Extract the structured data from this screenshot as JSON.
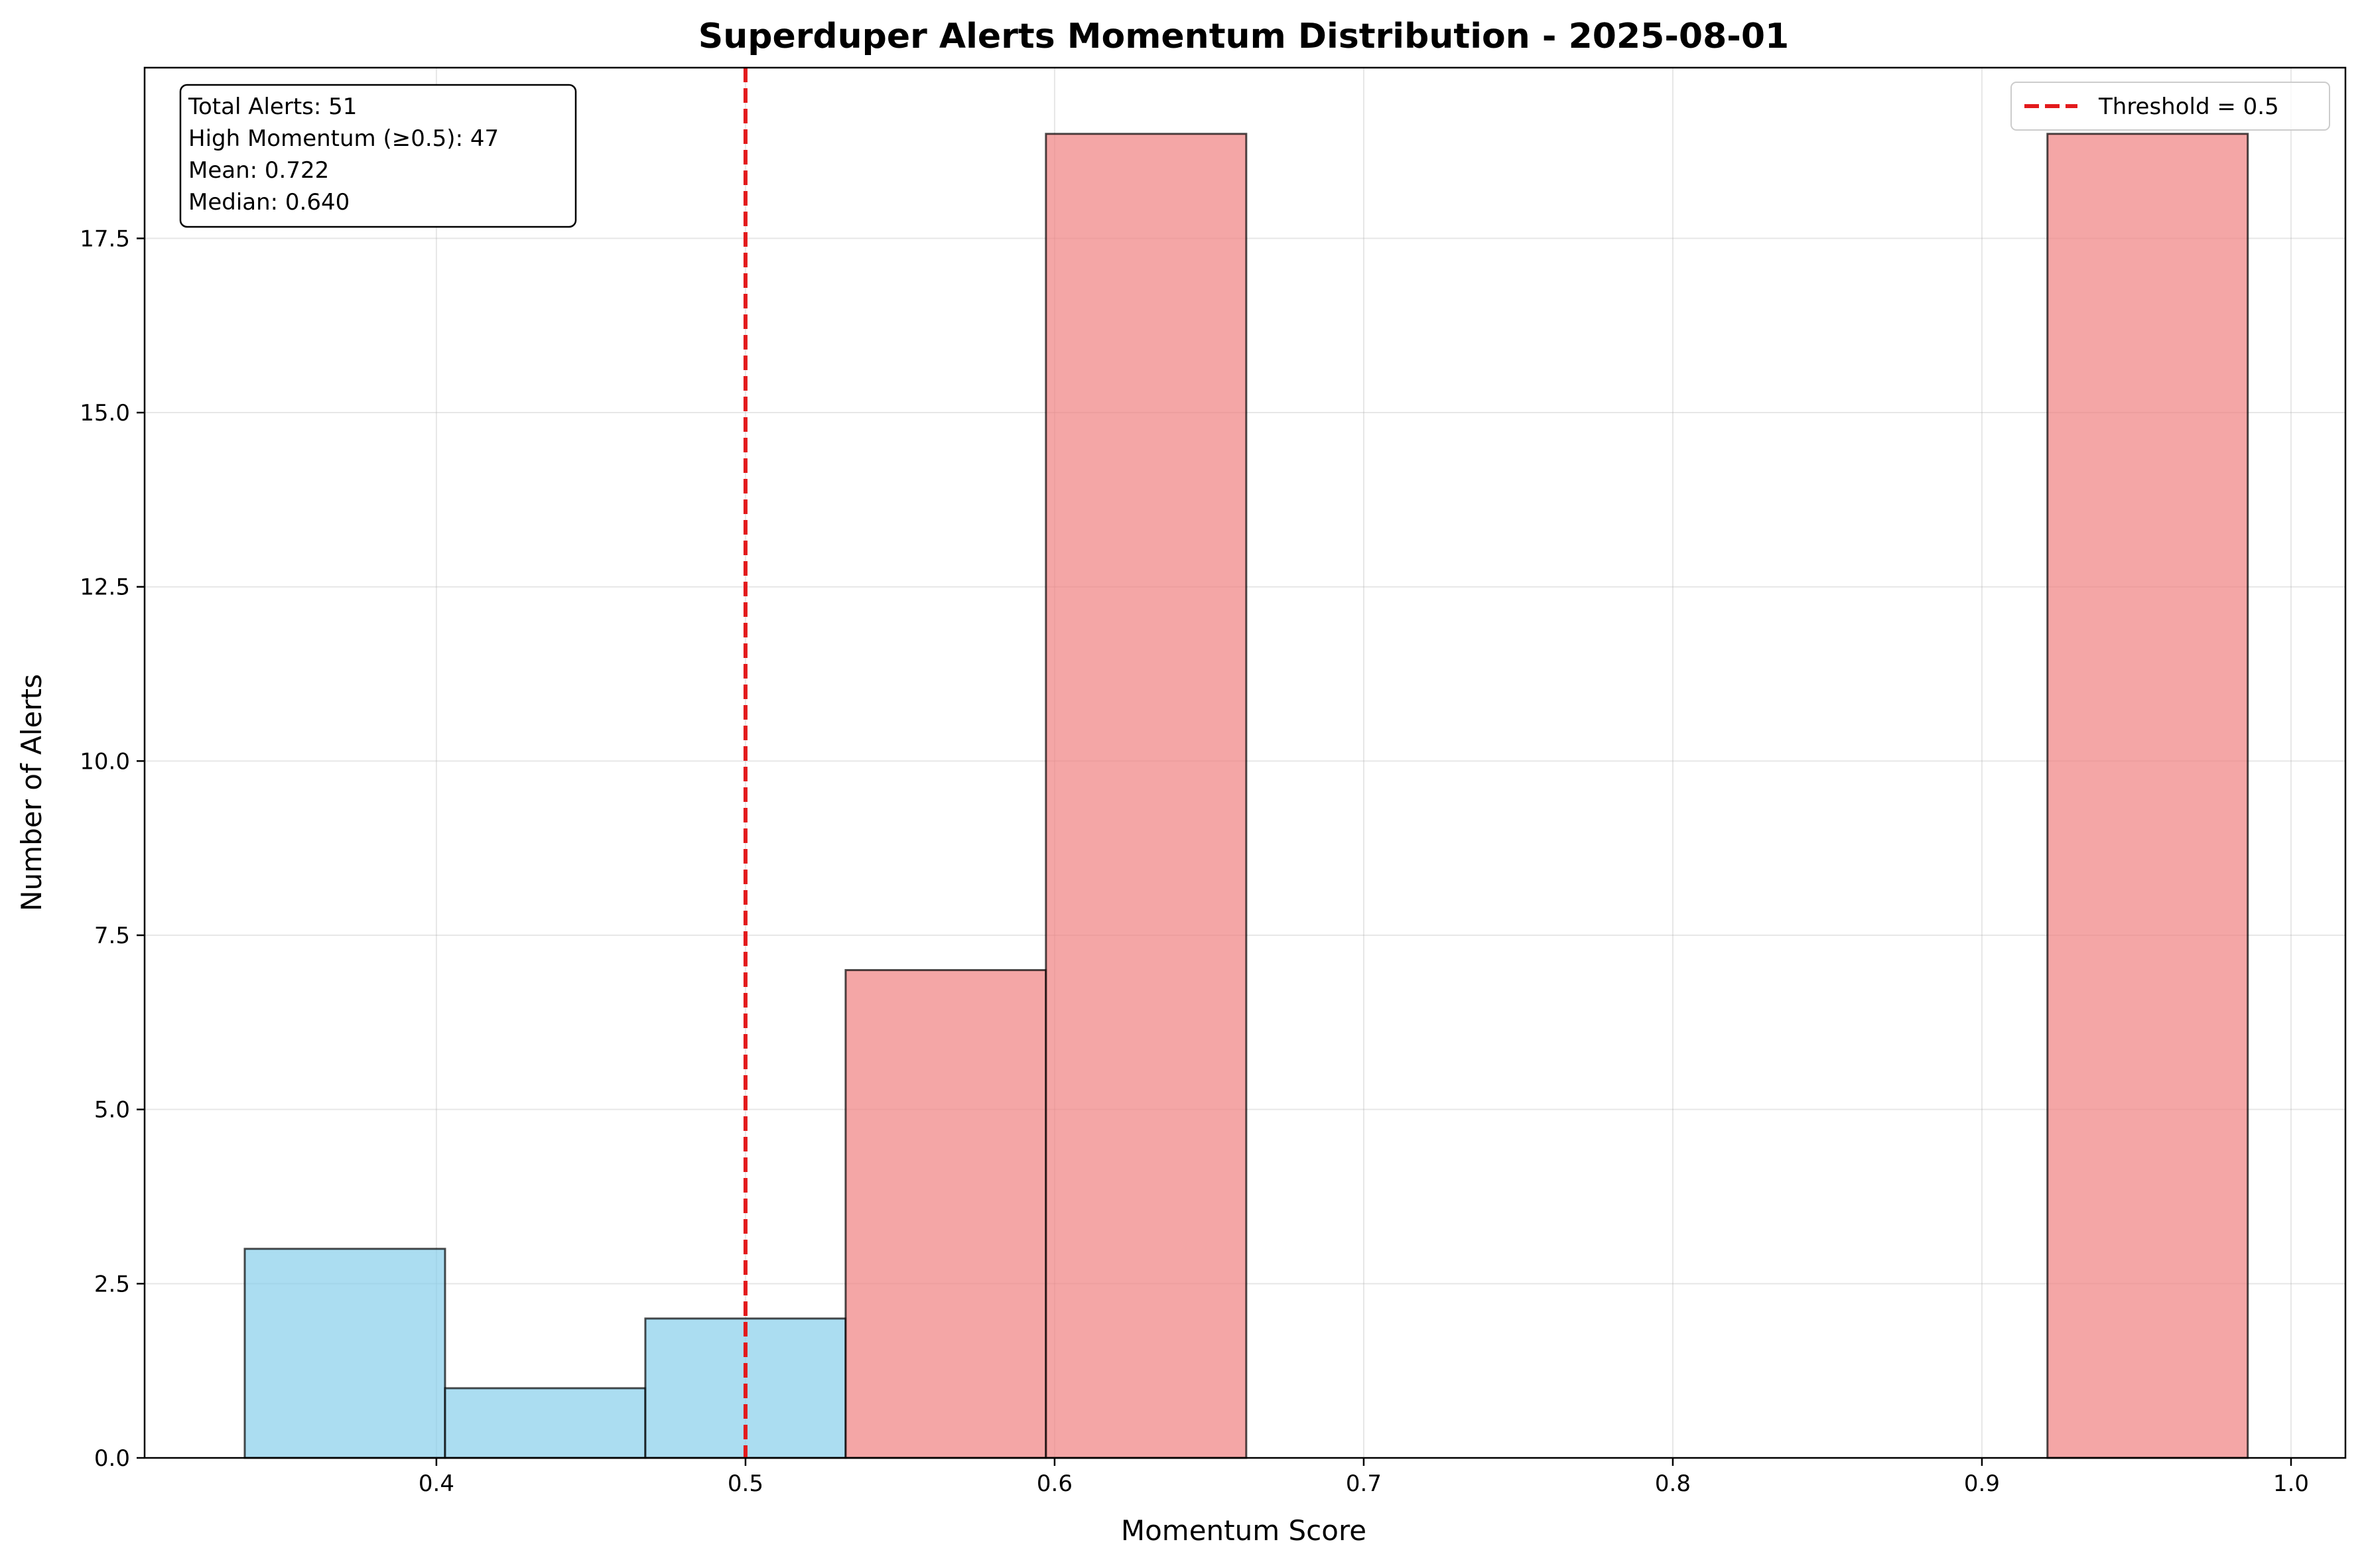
{
  "chart_data": {
    "type": "bar",
    "title": "Superduper Alerts Momentum Distribution - 2025-08-01",
    "xlabel": "Momentum Score",
    "ylabel": "Number of Alerts",
    "xlim": [
      0.3056,
      1.0176
    ],
    "ylim": [
      0,
      19.95
    ],
    "xticks": [
      0.4,
      0.5,
      0.6,
      0.7,
      0.8,
      0.9,
      1.0
    ],
    "xtick_labels": [
      "0.4",
      "0.5",
      "0.6",
      "0.7",
      "0.8",
      "0.9",
      "1.0"
    ],
    "yticks": [
      0,
      2.5,
      5,
      7.5,
      10,
      12.5,
      15,
      17.5
    ],
    "ytick_labels": [
      "0.0",
      "2.5",
      "5.0",
      "7.5",
      "10.0",
      "12.5",
      "15.0",
      "17.5"
    ],
    "grid": true,
    "bins": [
      {
        "x0": 0.338,
        "x1": 0.4028,
        "count": 3,
        "group": "low"
      },
      {
        "x0": 0.4028,
        "x1": 0.4676,
        "count": 1,
        "group": "low"
      },
      {
        "x0": 0.4676,
        "x1": 0.5324,
        "count": 2,
        "group": "low"
      },
      {
        "x0": 0.5324,
        "x1": 0.5972,
        "count": 7,
        "group": "high"
      },
      {
        "x0": 0.5972,
        "x1": 0.662,
        "count": 19,
        "group": "high"
      },
      {
        "x0": 0.9212,
        "x1": 0.986,
        "count": 19,
        "group": "high"
      }
    ],
    "threshold": {
      "value": 0.5,
      "label": "Threshold = 0.5",
      "color": "#e31a1c"
    },
    "colors": {
      "low": "#87ceeb",
      "high": "#f08080",
      "edge": "#000000"
    },
    "legend": {
      "placement": "top-right",
      "entries": [
        "Threshold = 0.5"
      ]
    },
    "stats_box": {
      "placement": "top-left",
      "lines": [
        "Total Alerts: 51",
        "High Momentum (≥0.5): 47",
        "Mean: 0.722",
        "Median: 0.640"
      ]
    }
  }
}
